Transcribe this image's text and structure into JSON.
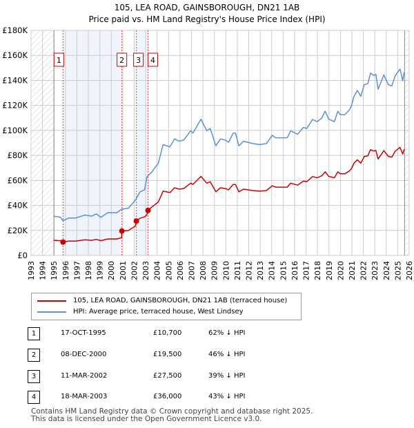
{
  "title_line1": "105, LEA ROAD, GAINSBOROUGH, DN21 1AB",
  "title_line2": "Price paid vs. HM Land Registry's House Price Index (HPI)",
  "chart_data": {
    "type": "line",
    "title": "105, LEA ROAD, GAINSBOROUGH, DN21 1AB — Price paid vs. HM Land Registry's House Price Index (HPI)",
    "xlim": [
      1993,
      2026
    ],
    "ylim": [
      0,
      180000
    ],
    "x_ticks": [
      "1993",
      "1994",
      "1995",
      "1996",
      "1997",
      "1998",
      "1999",
      "2000",
      "2001",
      "2002",
      "2003",
      "2004",
      "2005",
      "2006",
      "2007",
      "2008",
      "2009",
      "2010",
      "2011",
      "2012",
      "2013",
      "2014",
      "2015",
      "2016",
      "2017",
      "2018",
      "2019",
      "2020",
      "2021",
      "2022",
      "2023",
      "2024",
      "2025",
      "2026"
    ],
    "y_ticks": [
      {
        "v": 0,
        "label": "£0"
      },
      {
        "v": 20000,
        "label": "£20K"
      },
      {
        "v": 40000,
        "label": "£40K"
      },
      {
        "v": 60000,
        "label": "£60K"
      },
      {
        "v": 80000,
        "label": "£80K"
      },
      {
        "v": 100000,
        "label": "£100K"
      },
      {
        "v": 120000,
        "label": "£120K"
      },
      {
        "v": 140000,
        "label": "£140K"
      },
      {
        "v": 160000,
        "label": "£160K"
      },
      {
        "v": 180000,
        "label": "£180K"
      }
    ],
    "grid": true,
    "hatched_ranges": [
      [
        1993,
        1995
      ],
      [
        2025.6,
        2026
      ]
    ],
    "shaded_ranges": [
      [
        1995.79,
        2000.93
      ],
      [
        2002.19,
        2003.21
      ]
    ],
    "series": [
      {
        "name": "105, LEA ROAD, GAINSBOROUGH, DN21 1AB (terraced house)",
        "color": "#cc0000",
        "x": [
          1994.98,
          1995.58,
          1995.79,
          1996.28,
          1996.89,
          1997.69,
          1998.29,
          1998.69,
          1999.1,
          1999.7,
          2000.5,
          2000.9,
          2000.93,
          2001.5,
          2002.11,
          2002.19,
          2002.51,
          2002.91,
          2003.11,
          2003.21,
          2003.51,
          2004.11,
          2004.52,
          2005.12,
          2005.52,
          2005.92,
          2006.33,
          2006.93,
          2007.13,
          2007.83,
          2008.33,
          2008.63,
          2009.13,
          2009.53,
          2009.94,
          2010.24,
          2010.64,
          2010.84,
          2011.14,
          2011.54,
          2012.35,
          2012.95,
          2013.55,
          2014.05,
          2014.35,
          2015.36,
          2015.66,
          2016.26,
          2016.76,
          2017.06,
          2017.57,
          2017.97,
          2018.37,
          2018.67,
          2018.97,
          2019.47,
          2019.78,
          2019.98,
          2020.38,
          2020.78,
          2020.98,
          2021.18,
          2021.48,
          2021.78,
          2022.08,
          2022.39,
          2022.63,
          2022.89,
          2023.09,
          2023.29,
          2023.79,
          2024.19,
          2024.49,
          2024.79,
          2025.2,
          2025.44,
          2025.56
        ],
        "y": [
          12100,
          11800,
          10700,
          11500,
          11500,
          12500,
          12100,
          12800,
          11800,
          13200,
          13200,
          14200,
          19500,
          20000,
          23500,
          27500,
          29700,
          30800,
          32500,
          36000,
          38500,
          42800,
          51400,
          50300,
          54100,
          53000,
          53500,
          57800,
          56800,
          63200,
          57800,
          58900,
          50900,
          54100,
          53500,
          52500,
          56700,
          56700,
          50900,
          53000,
          51900,
          51400,
          51900,
          55700,
          54600,
          54600,
          57800,
          56200,
          59400,
          58900,
          63100,
          62100,
          63700,
          66900,
          63200,
          62100,
          66900,
          65300,
          65300,
          67500,
          69600,
          73800,
          76500,
          73800,
          79200,
          79700,
          84600,
          83500,
          84000,
          77100,
          83800,
          79200,
          78600,
          83500,
          86400,
          81100,
          85000
        ]
      },
      {
        "name": "HPI: Average price, terraced house, West Lindsey",
        "color": "#5b8fd6",
        "x": [
          1994.98,
          1995.58,
          1995.78,
          1996.28,
          1996.89,
          1997.69,
          1998.29,
          1998.69,
          1999.1,
          1999.7,
          2000.5,
          2000.9,
          2001.5,
          2002.11,
          2002.51,
          2002.91,
          2003.11,
          2003.51,
          2004.11,
          2004.52,
          2005.12,
          2005.52,
          2005.92,
          2006.33,
          2006.93,
          2007.13,
          2007.83,
          2008.33,
          2008.63,
          2009.13,
          2009.53,
          2009.94,
          2010.24,
          2010.64,
          2010.84,
          2011.14,
          2011.54,
          2012.35,
          2012.95,
          2013.55,
          2014.05,
          2014.35,
          2015.36,
          2015.66,
          2016.26,
          2016.76,
          2017.06,
          2017.57,
          2017.97,
          2018.37,
          2018.67,
          2018.97,
          2019.47,
          2019.78,
          2019.98,
          2020.38,
          2020.78,
          2020.98,
          2021.18,
          2021.48,
          2021.78,
          2022.08,
          2022.39,
          2022.63,
          2022.89,
          2023.09,
          2023.29,
          2023.79,
          2024.19,
          2024.49,
          2024.79,
          2025.2,
          2025.44,
          2025.56
        ],
        "y": [
          31400,
          30500,
          27700,
          29900,
          29900,
          32300,
          31400,
          33200,
          30500,
          34200,
          34200,
          36900,
          37800,
          44300,
          50800,
          52600,
          62700,
          66400,
          73800,
          88600,
          86800,
          93200,
          91400,
          92300,
          99700,
          97900,
          109000,
          99700,
          101500,
          87700,
          93200,
          92300,
          90500,
          97800,
          97800,
          87700,
          91300,
          89500,
          88600,
          89500,
          96000,
          94100,
          94100,
          99600,
          96900,
          102400,
          101500,
          108800,
          107000,
          109800,
          115400,
          109000,
          107000,
          115400,
          112600,
          112600,
          116300,
          120000,
          127300,
          131900,
          127300,
          136500,
          137400,
          145800,
          144000,
          144900,
          132900,
          144400,
          136500,
          135600,
          143900,
          149000,
          139800,
          146600
        ]
      }
    ],
    "sales": [
      {
        "label": "1",
        "x": 1995.79,
        "y": 10700
      },
      {
        "label": "2",
        "x": 2000.93,
        "y": 19500
      },
      {
        "label": "3",
        "x": 2002.19,
        "y": 27500
      },
      {
        "label": "4",
        "x": 2003.21,
        "y": 36000
      }
    ],
    "legend_placement": "below"
  },
  "legend": [
    {
      "label": "105, LEA ROAD, GAINSBOROUGH, DN21 1AB (terraced house)",
      "color": "#cc0000"
    },
    {
      "label": "HPI: Average price, terraced house, West Lindsey",
      "color": "#5b8fd6"
    }
  ],
  "transactions": [
    {
      "num": "1",
      "date": "17-OCT-1995",
      "price": "£10,700",
      "hpi": "62% ↓ HPI"
    },
    {
      "num": "2",
      "date": "08-DEC-2000",
      "price": "£19,500",
      "hpi": "46% ↓ HPI"
    },
    {
      "num": "3",
      "date": "11-MAR-2002",
      "price": "£27,500",
      "hpi": "39% ↓ HPI"
    },
    {
      "num": "4",
      "date": "18-MAR-2003",
      "price": "£36,000",
      "hpi": "43% ↓ HPI"
    }
  ],
  "footer": [
    "Contains HM Land Registry data © Crown copyright and database right 2025.",
    "This data is licensed under the Open Government Licence v3.0."
  ]
}
